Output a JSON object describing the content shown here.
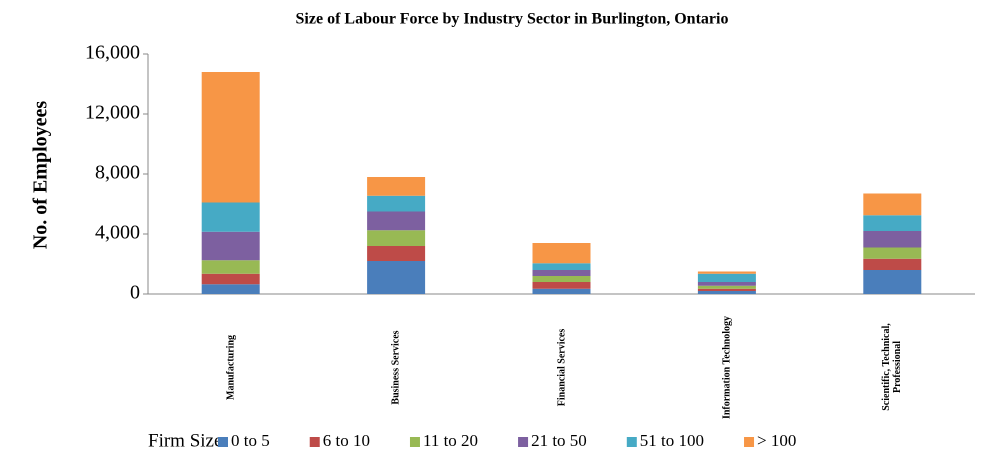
{
  "chart_data": {
    "type": "stacked_bar",
    "title": "Size of Labour Force by Industry Sector in Burlington, Ontario",
    "y_axis_label": "No. of Employees",
    "legend_title": "Firm Size:",
    "categories": [
      "Manufacturing",
      "Business Services",
      "Financial Services",
      "Information Technology",
      "Scientific, Technical, Professional"
    ],
    "series": [
      {
        "name": "0 to 5",
        "color": "#4a7ebb",
        "values": [
          650,
          2200,
          350,
          200,
          1600
        ]
      },
      {
        "name": "6 to 10",
        "color": "#be4b48",
        "values": [
          700,
          1000,
          450,
          150,
          750
        ]
      },
      {
        "name": "11 to 20",
        "color": "#98b954",
        "values": [
          900,
          1050,
          400,
          200,
          750
        ]
      },
      {
        "name": "21 to 50",
        "color": "#7d60a0",
        "values": [
          1900,
          1250,
          400,
          250,
          1100
        ]
      },
      {
        "name": "51 to 100",
        "color": "#46aac5",
        "values": [
          1950,
          1050,
          450,
          550,
          1050
        ]
      },
      {
        "name": "> 100",
        "color": "#f79646",
        "values": [
          8700,
          1250,
          1350,
          150,
          1450
        ]
      }
    ],
    "ylim": [
      0,
      16000
    ],
    "yticks": [
      0,
      {
        "value": 4000,
        "label": "4,000"
      },
      {
        "value": 8000,
        "label": "8,000"
      },
      {
        "value": 12000,
        "label": "12,000"
      },
      {
        "value": 16000,
        "label": "16,000"
      }
    ],
    "legend": "bottom"
  }
}
